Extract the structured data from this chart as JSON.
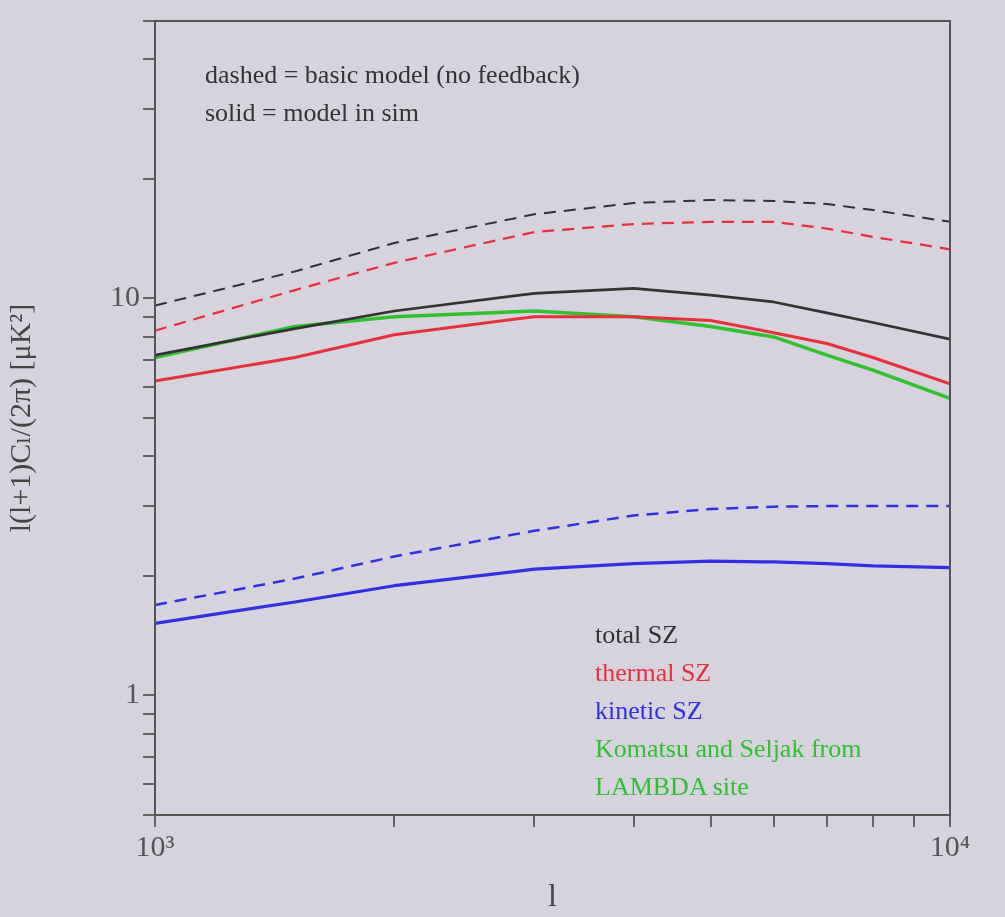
{
  "chart_data": {
    "type": "line",
    "xlabel": "l",
    "ylabel": "l(l+1)Cₗ/(2π) [μK²]",
    "log": "xy",
    "grid": false,
    "legend": "bottom right",
    "marker": "none",
    "x": [
      1000,
      1500,
      2000,
      3000,
      4000,
      5000,
      6000,
      7000,
      8000,
      10000
    ],
    "xlim": [
      1000,
      10000
    ],
    "xticks": [
      {
        "value": 1000,
        "label": "10³"
      },
      {
        "value": 2000,
        "label": null
      },
      {
        "value": 3000,
        "label": null
      },
      {
        "value": 4000,
        "label": null
      },
      {
        "value": 5000,
        "label": null
      },
      {
        "value": 6000,
        "label": null
      },
      {
        "value": 7000,
        "label": null
      },
      {
        "value": 8000,
        "label": null
      },
      {
        "value": 9000,
        "label": null
      },
      {
        "value": 10000,
        "label": "10⁴"
      }
    ],
    "ylim": [
      0.5,
      50
    ],
    "yticks": [
      {
        "value": 0.5,
        "label": null
      },
      {
        "value": 0.6,
        "label": null
      },
      {
        "value": 0.7,
        "label": null
      },
      {
        "value": 0.8,
        "label": null
      },
      {
        "value": 0.9,
        "label": null
      },
      1,
      {
        "value": 2,
        "label": null
      },
      {
        "value": 3,
        "label": null
      },
      {
        "value": 4,
        "label": null
      },
      {
        "value": 5,
        "label": null
      },
      {
        "value": 6,
        "label": null
      },
      {
        "value": 7,
        "label": null
      },
      {
        "value": 8,
        "label": null
      },
      {
        "value": 9,
        "label": null
      },
      10,
      {
        "value": 20,
        "label": null
      },
      {
        "value": 30,
        "label": null
      },
      {
        "value": 40,
        "label": null
      },
      {
        "value": 50,
        "label": null
      }
    ],
    "annotations": [
      "dashed = basic model (no feedback)",
      "solid = model in sim"
    ],
    "series": [
      {
        "color": "#333333",
        "line_style": "dashed",
        "values": [
          9.6,
          11.7,
          13.8,
          16.3,
          17.4,
          17.7,
          17.6,
          17.3,
          16.7,
          15.6
        ]
      },
      {
        "color": "#e8303a",
        "line_style": "dashed",
        "values": [
          8.3,
          10.5,
          12.3,
          14.7,
          15.4,
          15.6,
          15.6,
          15.0,
          14.3,
          13.3
        ]
      },
      {
        "color": "#3030e0",
        "line_style": "dashed",
        "values": [
          1.69,
          1.97,
          2.24,
          2.6,
          2.84,
          2.95,
          2.99,
          3.0,
          3.0,
          3.0
        ]
      },
      {
        "name": "total SZ",
        "color": "#333333",
        "line_style": "solid",
        "values": [
          7.2,
          8.4,
          9.3,
          10.3,
          10.6,
          10.2,
          9.8,
          9.2,
          8.7,
          7.9
        ]
      },
      {
        "name": "thermal SZ",
        "color": "#e8303a",
        "line_style": "solid",
        "values": [
          6.2,
          7.1,
          8.1,
          9.0,
          9.0,
          8.8,
          8.2,
          7.7,
          7.1,
          6.1
        ]
      },
      {
        "name": "kinetic SZ",
        "color": "#3030e0",
        "line_style": "solid",
        "values": [
          1.52,
          1.72,
          1.89,
          2.08,
          2.15,
          2.18,
          2.17,
          2.15,
          2.12,
          2.1
        ]
      },
      {
        "name": "Komatsu and Seljak from LAMBDA site",
        "color": "#30c030",
        "line_style": "solid",
        "values": [
          7.1,
          8.5,
          9.0,
          9.3,
          9.0,
          8.5,
          8.0,
          7.2,
          6.6,
          5.6
        ]
      }
    ]
  }
}
